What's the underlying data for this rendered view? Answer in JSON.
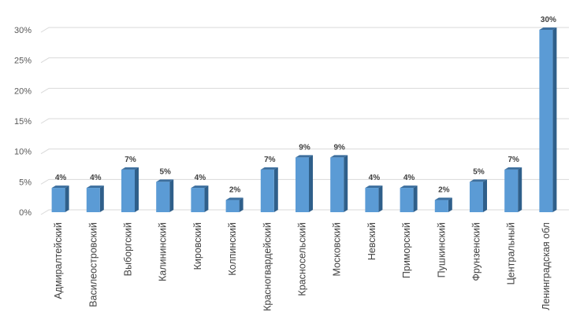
{
  "chart_data": {
    "type": "bar",
    "style": "3d-column",
    "categories": [
      "Адмиралтейский",
      "Василеостровский",
      "Выборгский",
      "Калининский",
      "Кировский",
      "Колпинский",
      "Красногвардейский",
      "Красносельский",
      "Московский",
      "Невский",
      "Приморский",
      "Пушкинский",
      "Фрунзенский",
      "Центральный",
      "Ленинградская обл"
    ],
    "values": [
      4,
      4,
      7,
      5,
      4,
      2,
      7,
      9,
      9,
      4,
      4,
      2,
      5,
      7,
      30
    ],
    "data_labels": [
      "4%",
      "4%",
      "7%",
      "5%",
      "4%",
      "2%",
      "7%",
      "9%",
      "9%",
      "4%",
      "4%",
      "2%",
      "5%",
      "7%",
      "30%"
    ],
    "y_ticks": [
      "0%",
      "5%",
      "10%",
      "15%",
      "20%",
      "25%",
      "30%"
    ],
    "ylim": [
      0,
      30
    ],
    "y_unit": "%",
    "grid": true,
    "legend": "none",
    "title": "",
    "xlabel": "",
    "ylabel": "",
    "colors": {
      "bar_front": "#5b9bd5",
      "bar_side": "#2f5f8a",
      "bar_top": "#3d6f9e",
      "gridline": "#d9d9d9",
      "text": "#404040"
    }
  }
}
